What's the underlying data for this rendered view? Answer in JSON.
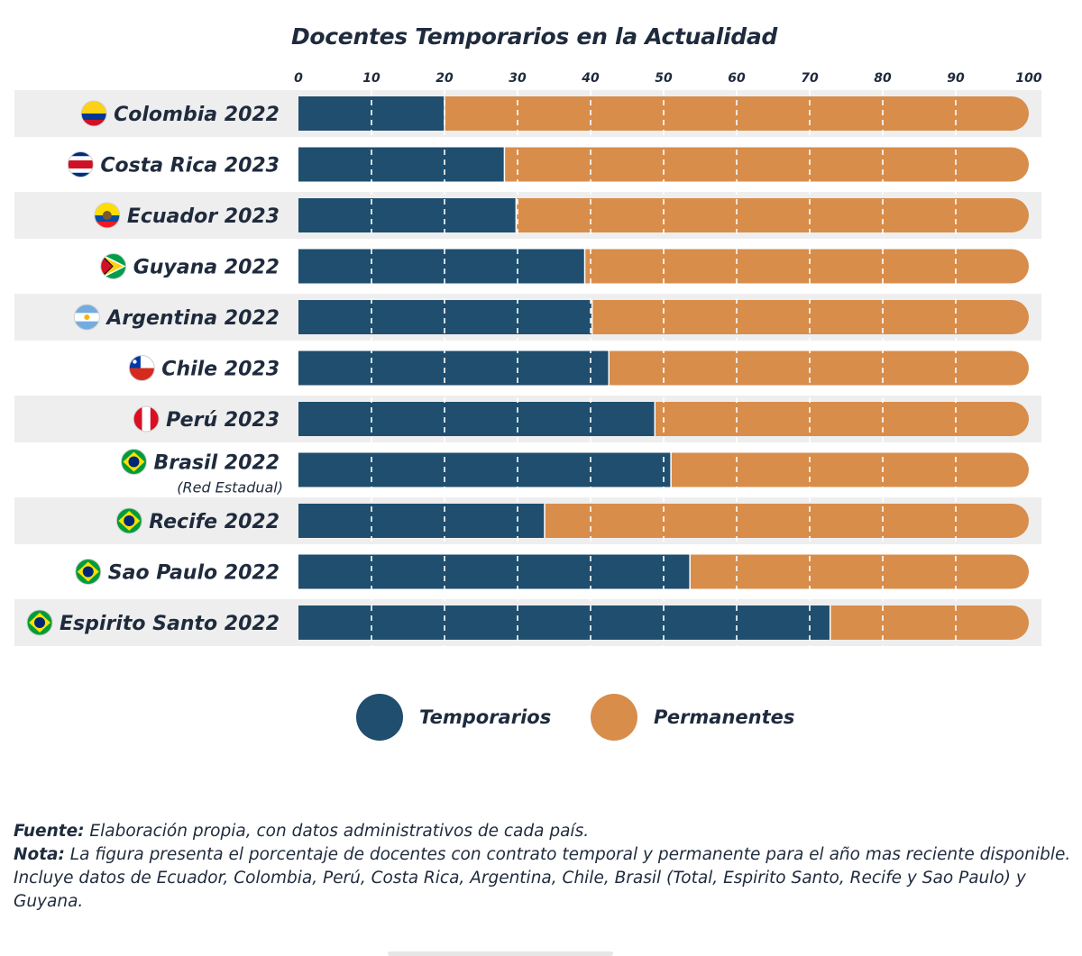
{
  "title": "Docentes Temporarios en la Actualidad",
  "colors": {
    "temporarios": "#1f4e6e",
    "permanentes": "#d88d4b",
    "row_shade": "#eeeeee",
    "text": "#1f2b3d"
  },
  "chart_data": {
    "type": "bar",
    "orientation": "horizontal",
    "stacked": true,
    "xlim": [
      0,
      100
    ],
    "xticks": [
      "0",
      "10",
      "20",
      "30",
      "40",
      "50",
      "60",
      "70",
      "80",
      "90",
      "100"
    ],
    "grid": "vertical dashed lines at ticks",
    "categories": [
      {
        "label": "Colombia 2022",
        "sublabel": "",
        "flag": "colombia-flag-icon"
      },
      {
        "label": "Costa Rica 2023",
        "sublabel": "",
        "flag": "costa-rica-flag-icon"
      },
      {
        "label": "Ecuador 2023",
        "sublabel": "",
        "flag": "ecuador-flag-icon"
      },
      {
        "label": "Guyana 2022",
        "sublabel": "",
        "flag": "guyana-flag-icon"
      },
      {
        "label": "Argentina 2022",
        "sublabel": "",
        "flag": "argentina-flag-icon"
      },
      {
        "label": "Chile 2023",
        "sublabel": "",
        "flag": "chile-flag-icon"
      },
      {
        "label": "Perú 2023",
        "sublabel": "",
        "flag": "peru-flag-icon"
      },
      {
        "label": "Brasil 2022",
        "sublabel": "(Red Estadual)",
        "flag": "brazil-flag-icon"
      },
      {
        "label": "Recife 2022",
        "sublabel": "",
        "flag": "brazil-flag-icon"
      },
      {
        "label": "Sao Paulo 2022",
        "sublabel": "",
        "flag": "brazil-flag-icon"
      },
      {
        "label": "Espirito Santo 2022",
        "sublabel": "",
        "flag": "brazil-flag-icon"
      }
    ],
    "series": [
      {
        "name": "Temporarios",
        "values": [
          20,
          28.2,
          29.8,
          39.2,
          40.2,
          42.5,
          48.8,
          51,
          33.7,
          53.6,
          72.8
        ]
      },
      {
        "name": "Permanentes",
        "values": [
          80,
          71.8,
          70.2,
          60.8,
          59.8,
          57.5,
          51.2,
          49,
          66.3,
          46.4,
          27.2
        ]
      }
    ],
    "legend_position": "bottom"
  },
  "legend": {
    "temporarios": "Temporarios",
    "permanentes": "Permanentes"
  },
  "notes": {
    "fuente_label": "Fuente:",
    "fuente_text": " Elaboración propia, con datos administrativos de cada país.",
    "nota_label": "Nota:",
    "nota_text": " La figura presenta el porcentaje de docentes con contrato temporal y permanente para el año mas reciente disponible. Incluye datos de Ecuador, Colombia, Perú, Costa Rica, Argentina, Chile, Brasil (Total, Espirito Santo, Recife y Sao Paulo) y Guyana."
  }
}
